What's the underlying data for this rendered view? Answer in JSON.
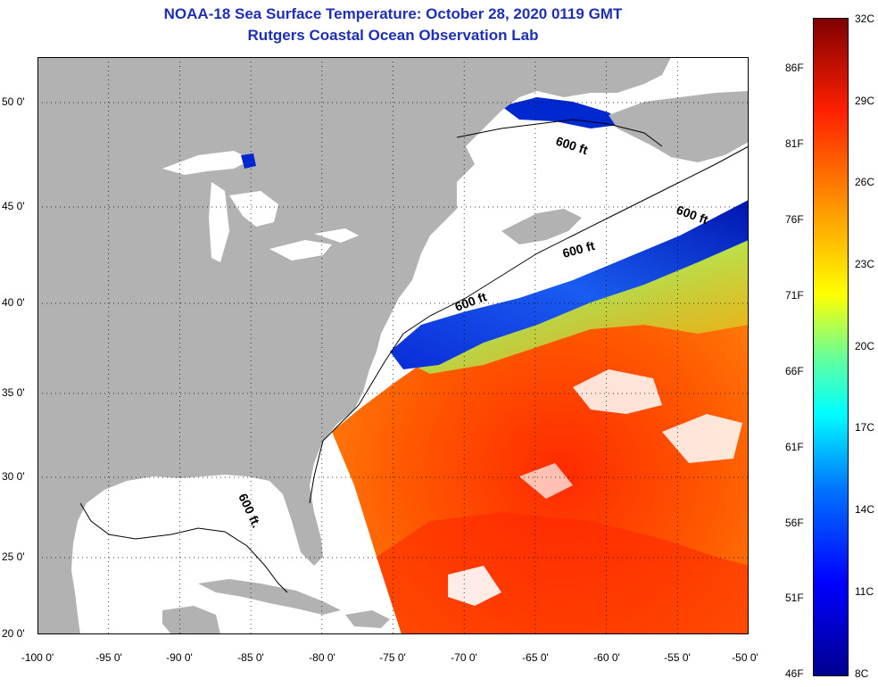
{
  "title": "NOAA-18 Sea Surface Temperature:  October 28, 2020 0119 GMT",
  "subtitle": "Rutgers Coastal Ocean Observation Lab",
  "lat_labels": [
    "50 0'",
    "45 0'",
    "40 0'",
    "35 0'",
    "30 0'",
    "25 0'",
    "20 0'"
  ],
  "lon_labels": [
    "-100 0'",
    "-95 0'",
    "-90 0'",
    "-85 0'",
    "-80 0'",
    "-75 0'",
    "-70 0'",
    "-65 0'",
    "-60 0'",
    "-55 0'",
    "-50 0'"
  ],
  "colorbar": {
    "fahrenheit": [
      "86F",
      "81F",
      "76F",
      "71F",
      "66F",
      "61F",
      "56F",
      "51F",
      "46F"
    ],
    "celsius": [
      "32C",
      "29C",
      "26C",
      "23C",
      "20C",
      "17C",
      "14C",
      "11C",
      "8C"
    ]
  },
  "contour_labels": [
    "600 ft",
    "600 ft",
    "600 ft",
    "600 ft",
    "600 ft."
  ],
  "colors": {
    "land": "#b2b2b2",
    "ocean_nodata": "#ffffff",
    "title": "#1f2fb4",
    "warm": "#ff5a00",
    "hot": "#ff2200",
    "cold": "#0022cc"
  }
}
